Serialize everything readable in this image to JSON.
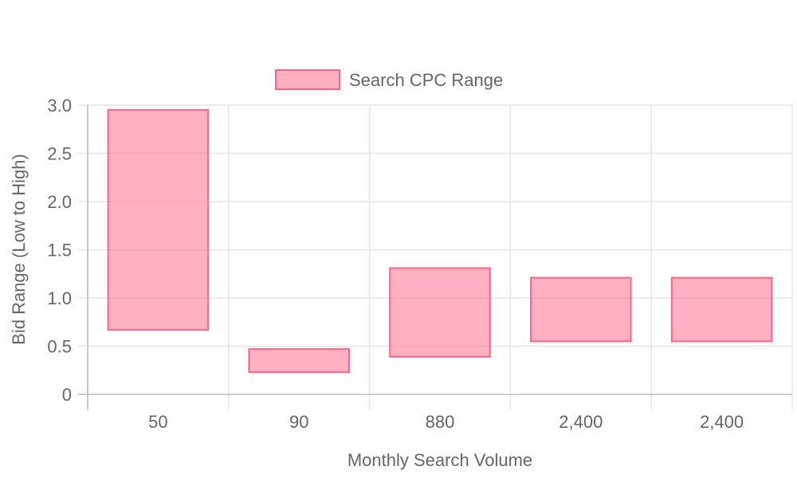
{
  "chart_data": {
    "type": "bar",
    "subtype": "floating-range",
    "categories": [
      "50",
      "90",
      "880",
      "2,400",
      "2,400"
    ],
    "series": [
      {
        "name": "Search CPC Range",
        "ranges": [
          [
            0.67,
            2.95
          ],
          [
            0.23,
            0.47
          ],
          [
            0.39,
            1.31
          ],
          [
            0.55,
            1.21
          ],
          [
            0.55,
            1.21
          ]
        ],
        "color": "#ff6384",
        "fill": "rgba(255, 99, 132, 0.5)"
      }
    ],
    "xlabel": "Monthly Search Volume",
    "ylabel": "Bid Range (Low to High)",
    "ylim": [
      0,
      3
    ],
    "yticks": [
      "0",
      "0.5",
      "1.0",
      "1.5",
      "2.0",
      "2.5",
      "3.0"
    ],
    "ytick_values": [
      0,
      0.5,
      1.0,
      1.5,
      2.0,
      2.5,
      3.0
    ],
    "grid": true,
    "legend_position": "top"
  },
  "colors": {
    "grid": "#e5e5e5",
    "axis": "#bdbdbd",
    "text": "#666666"
  }
}
